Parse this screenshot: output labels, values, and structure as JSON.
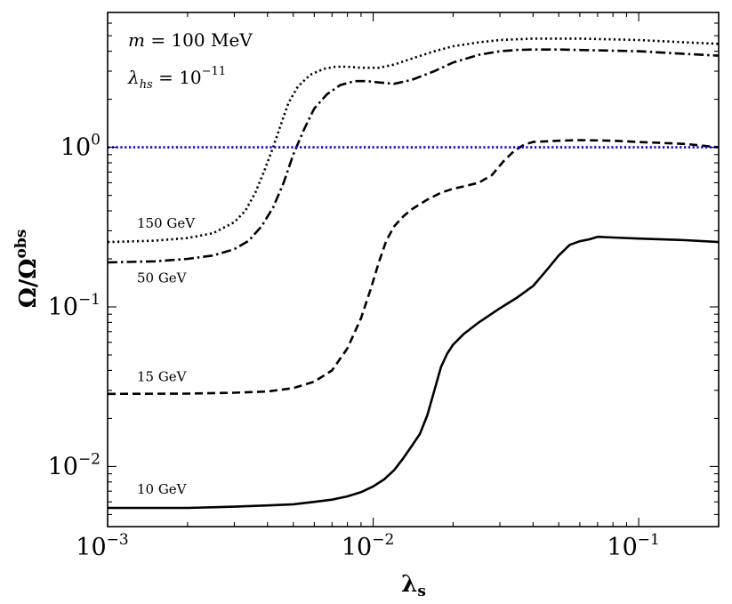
{
  "chart_data": {
    "type": "line",
    "xscale": "log",
    "yscale": "log",
    "xlim": [
      0.001,
      0.2
    ],
    "ylim": [
      0.0042,
      7.0
    ],
    "x_ticks": [
      {
        "value": 0.001,
        "base": "10",
        "exp": "−3"
      },
      {
        "value": 0.01,
        "base": "10",
        "exp": "−2"
      },
      {
        "value": 0.1,
        "base": "10",
        "exp": "−1"
      }
    ],
    "y_ticks": [
      {
        "value": 0.01,
        "base": "10",
        "exp": "−2"
      },
      {
        "value": 0.1,
        "base": "10",
        "exp": "−1"
      },
      {
        "value": 1,
        "base": "10",
        "exp": "0"
      }
    ],
    "xlabel": {
      "main": "λ",
      "sub": "s"
    },
    "ylabel": {
      "main": "Ω/Ω",
      "sup": "obs"
    },
    "annotations": {
      "mass": {
        "var": "m",
        "rest": " = 100 MeV"
      },
      "coupling": {
        "var": "λ",
        "sub": "hs",
        "eq": " = 10",
        "exp": "−11"
      }
    },
    "reference_line": {
      "y": 1.0,
      "style": "dotted",
      "color": "#0000dd"
    },
    "series": [
      {
        "name": "150 GeV",
        "style": "dotted",
        "color": "#000000",
        "x": [
          0.001,
          0.0015,
          0.002,
          0.0025,
          0.003,
          0.0033,
          0.0036,
          0.0039,
          0.0042,
          0.0045,
          0.0048,
          0.0052,
          0.0058,
          0.0065,
          0.0072,
          0.008,
          0.009,
          0.0105,
          0.012,
          0.014,
          0.017,
          0.02,
          0.025,
          0.03,
          0.04,
          0.06,
          0.1,
          0.15,
          0.2
        ],
        "y": [
          0.255,
          0.26,
          0.27,
          0.29,
          0.34,
          0.4,
          0.52,
          0.72,
          1.0,
          1.4,
          1.9,
          2.4,
          2.85,
          3.1,
          3.2,
          3.2,
          3.15,
          3.15,
          3.3,
          3.6,
          4.0,
          4.3,
          4.55,
          4.7,
          4.8,
          4.8,
          4.7,
          4.55,
          4.45
        ]
      },
      {
        "name": "50 GeV",
        "style": "dashdot",
        "color": "#000000",
        "x": [
          0.001,
          0.0015,
          0.002,
          0.0025,
          0.003,
          0.0034,
          0.0038,
          0.0042,
          0.0046,
          0.005,
          0.0055,
          0.006,
          0.0067,
          0.0075,
          0.0085,
          0.0095,
          0.0105,
          0.012,
          0.014,
          0.017,
          0.02,
          0.025,
          0.03,
          0.035,
          0.04,
          0.05,
          0.07,
          0.1,
          0.15,
          0.2
        ],
        "y": [
          0.19,
          0.193,
          0.2,
          0.21,
          0.23,
          0.26,
          0.32,
          0.42,
          0.6,
          0.9,
          1.3,
          1.75,
          2.15,
          2.45,
          2.6,
          2.6,
          2.55,
          2.5,
          2.65,
          3.0,
          3.4,
          3.8,
          4.0,
          4.08,
          4.1,
          4.1,
          4.05,
          4.0,
          3.85,
          3.75
        ]
      },
      {
        "name": "15 GeV",
        "style": "dashed",
        "color": "#000000",
        "x": [
          0.001,
          0.002,
          0.003,
          0.004,
          0.005,
          0.006,
          0.007,
          0.008,
          0.009,
          0.0098,
          0.0105,
          0.0112,
          0.012,
          0.013,
          0.014,
          0.016,
          0.018,
          0.02,
          0.022,
          0.025,
          0.028,
          0.031,
          0.034,
          0.037,
          0.04,
          0.05,
          0.06,
          0.08,
          0.1,
          0.15,
          0.2
        ],
        "y": [
          0.0285,
          0.0286,
          0.029,
          0.0295,
          0.031,
          0.034,
          0.04,
          0.055,
          0.085,
          0.13,
          0.19,
          0.26,
          0.32,
          0.37,
          0.41,
          0.47,
          0.52,
          0.55,
          0.57,
          0.6,
          0.67,
          0.82,
          0.95,
          1.04,
          1.08,
          1.1,
          1.11,
          1.1,
          1.08,
          1.05,
          1.0
        ]
      },
      {
        "name": "10 GeV",
        "style": "solid",
        "color": "#000000",
        "x": [
          0.001,
          0.002,
          0.003,
          0.004,
          0.005,
          0.006,
          0.007,
          0.008,
          0.009,
          0.01,
          0.011,
          0.012,
          0.013,
          0.014,
          0.015,
          0.016,
          0.017,
          0.018,
          0.019,
          0.02,
          0.022,
          0.025,
          0.03,
          0.035,
          0.04,
          0.045,
          0.05,
          0.055,
          0.06,
          0.065,
          0.07,
          0.08,
          0.1,
          0.15,
          0.2
        ],
        "y": [
          0.0055,
          0.0055,
          0.0056,
          0.0057,
          0.0058,
          0.006,
          0.0062,
          0.0065,
          0.0069,
          0.0075,
          0.0083,
          0.0095,
          0.0113,
          0.0135,
          0.016,
          0.021,
          0.03,
          0.042,
          0.051,
          0.058,
          0.068,
          0.08,
          0.098,
          0.115,
          0.135,
          0.17,
          0.21,
          0.245,
          0.258,
          0.265,
          0.275,
          0.272,
          0.268,
          0.262,
          0.255
        ]
      }
    ],
    "curve_labels": [
      {
        "text": "150 GeV",
        "x": 0.00108,
        "y": 0.33
      },
      {
        "text": "50 GeV",
        "x": 0.00108,
        "y": 0.15
      },
      {
        "text": "15 GeV",
        "x": 0.00108,
        "y": 0.036
      },
      {
        "text": "10 GeV",
        "x": 0.00108,
        "y": 0.0071
      }
    ]
  }
}
